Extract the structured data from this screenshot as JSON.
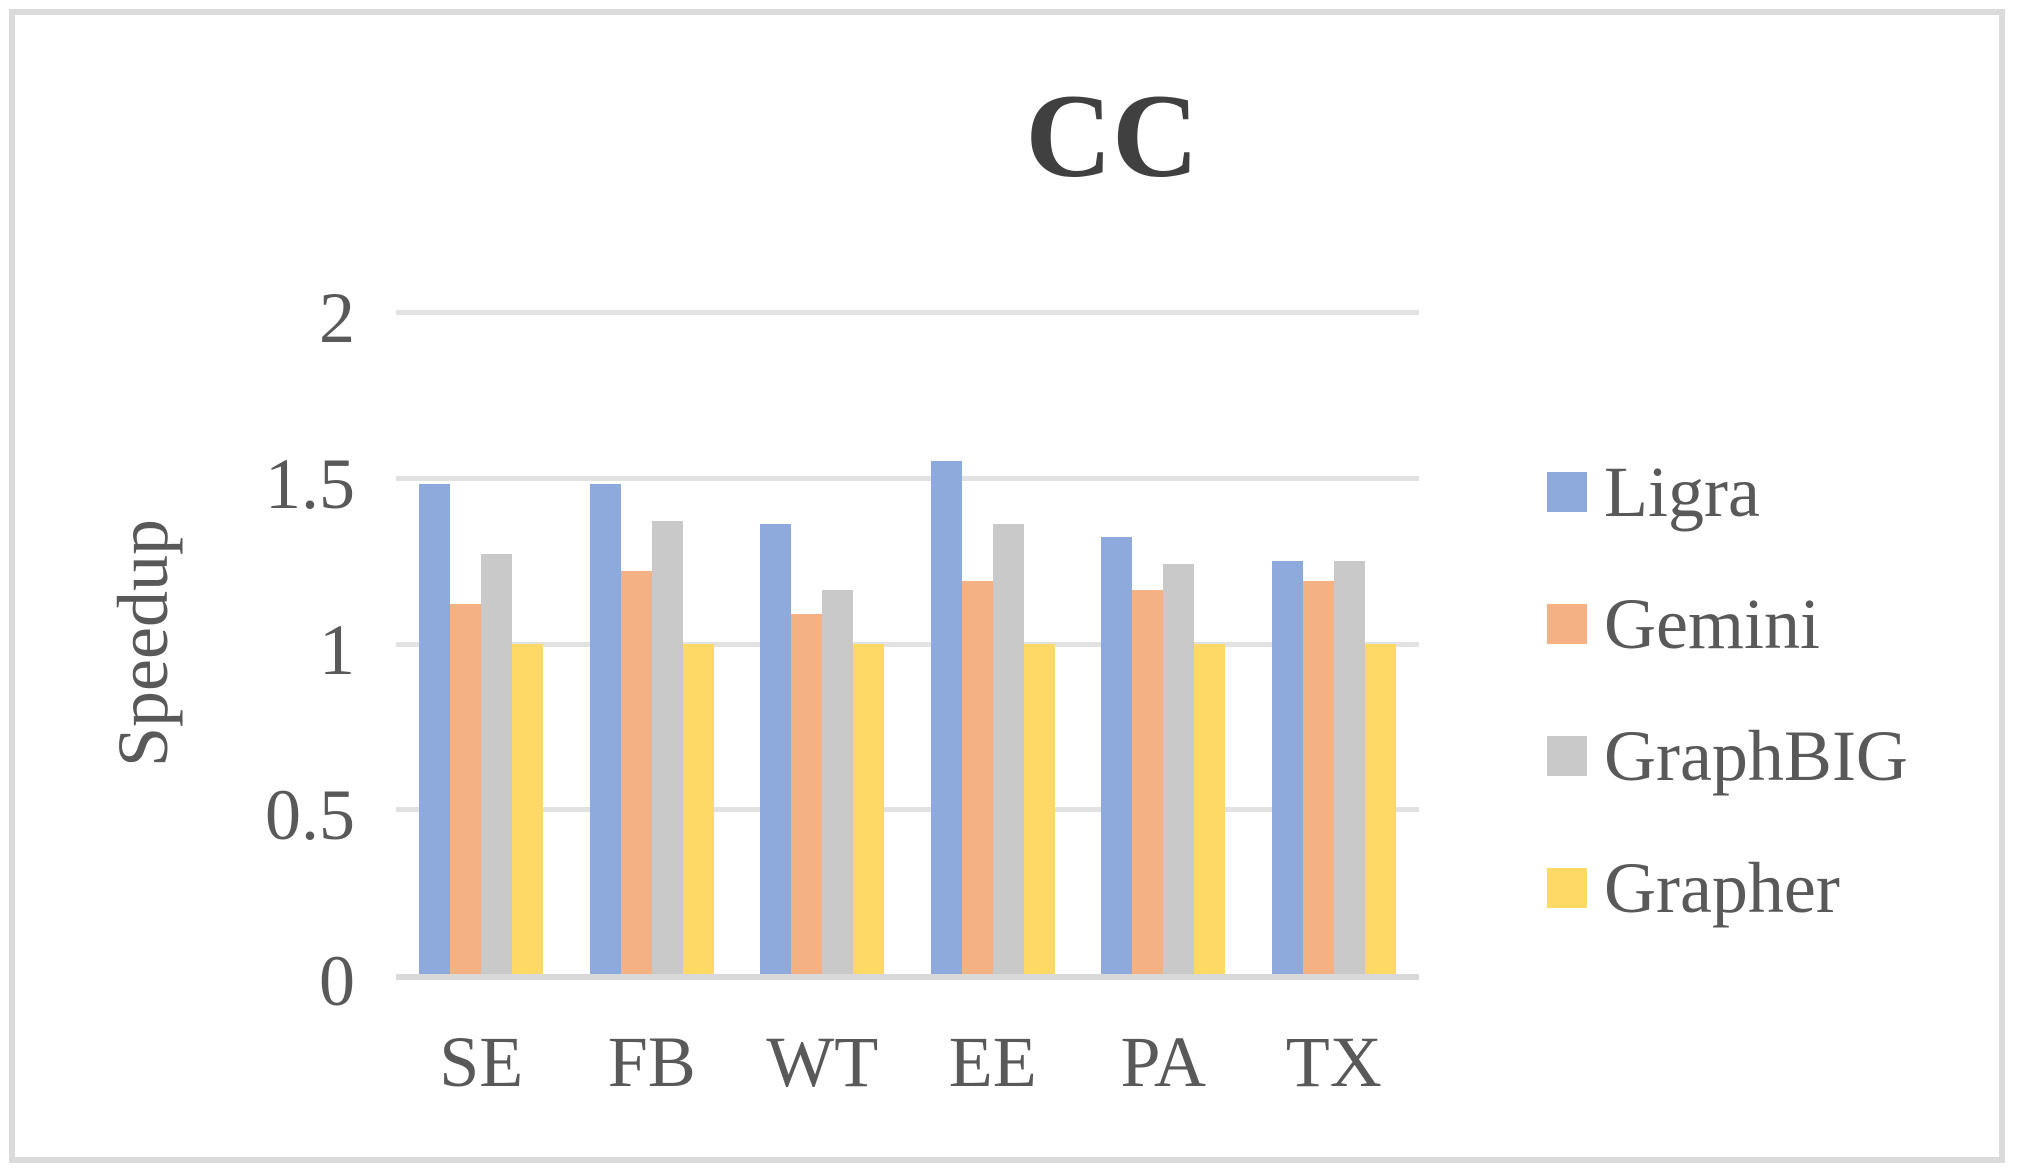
{
  "chart_data": {
    "type": "bar",
    "title": "CC",
    "xlabel": "",
    "ylabel": "Speedup",
    "categories": [
      "SE",
      "FB",
      "WT",
      "EE",
      "PA",
      "TX"
    ],
    "series": [
      {
        "name": "Ligra",
        "color": "#8EA9DB",
        "values": [
          1.48,
          1.48,
          1.36,
          1.55,
          1.32,
          1.25
        ]
      },
      {
        "name": "Gemini",
        "color": "#F4B183",
        "values": [
          1.12,
          1.22,
          1.09,
          1.19,
          1.16,
          1.19
        ]
      },
      {
        "name": "GraphBIG",
        "color": "#C9C9C9",
        "values": [
          1.27,
          1.37,
          1.16,
          1.36,
          1.24,
          1.25
        ]
      },
      {
        "name": "Grapher",
        "color": "#FFD966",
        "values": [
          1.0,
          1.0,
          1.0,
          1.0,
          1.0,
          1.0
        ]
      }
    ],
    "ylim": [
      0,
      2
    ],
    "yticks": [
      0,
      0.5,
      1,
      1.5,
      2
    ],
    "ytick_labels": [
      "0",
      "0.5",
      "1",
      "1.5",
      "2"
    ],
    "grid": true,
    "legend_position": "right",
    "colors": {
      "background": "#FFFFFF",
      "frame_border": "#DBDBDB",
      "gridline": "#E2E2E2",
      "axis_line": "#D9D9D9",
      "axis_text": "#595959",
      "title_text": "#404040"
    }
  }
}
